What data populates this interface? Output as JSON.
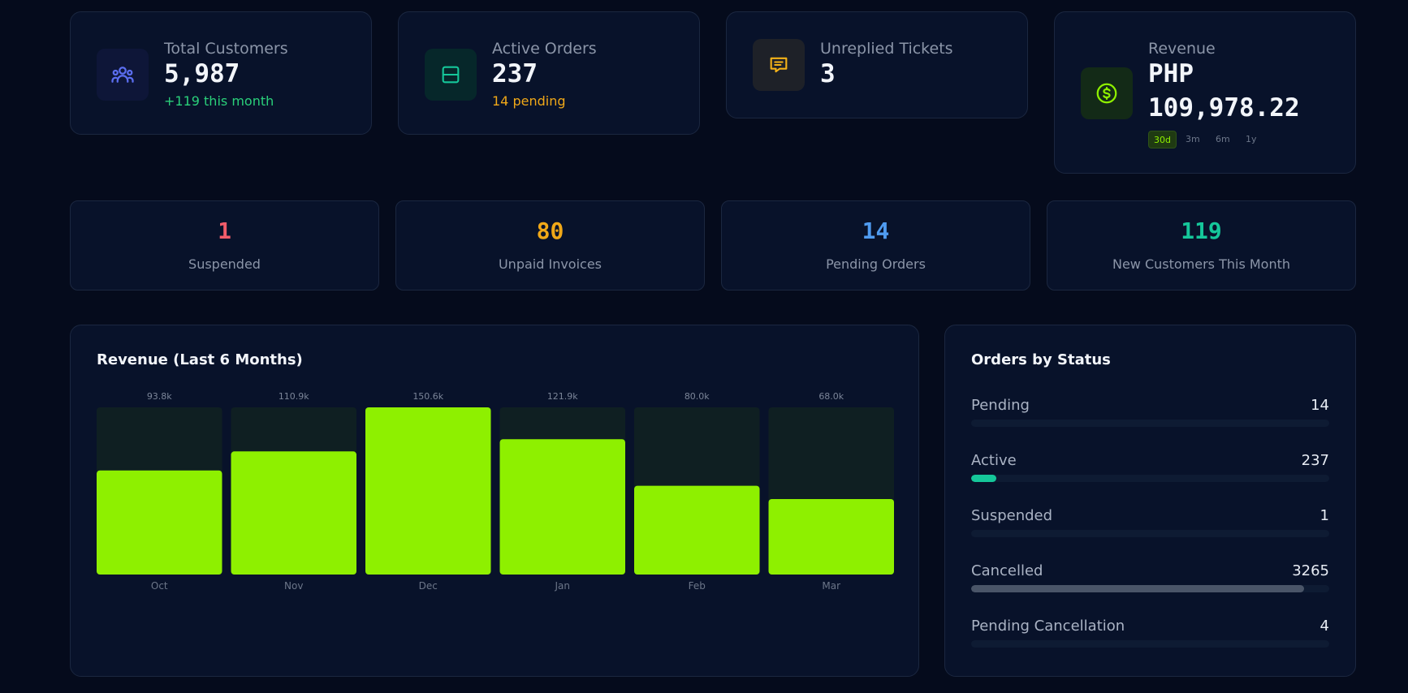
{
  "stats": [
    {
      "label": "Total Customers",
      "value": "5,987",
      "sub": "+119 this month",
      "sub_color": "#2ad07a",
      "icon": "users-icon",
      "accent": "#5b6ef0"
    },
    {
      "label": "Active Orders",
      "value": "237",
      "sub": "14 pending",
      "sub_color": "#f0a818",
      "icon": "layout-icon",
      "accent": "#15c79a"
    },
    {
      "label": "Unreplied Tickets",
      "value": "3",
      "sub": "",
      "icon": "message-icon",
      "accent": "#f5b318"
    },
    {
      "label": "Revenue",
      "value_line1": "PHP",
      "value_line2": "109,978.22",
      "icon": "dollar-icon",
      "accent": "#8ef000",
      "ranges": [
        "30d",
        "3m",
        "6m",
        "1y"
      ],
      "selected_range": "30d"
    }
  ],
  "mini_stats": [
    {
      "value": "1",
      "label": "Suspended",
      "color": "#f25c6a"
    },
    {
      "value": "80",
      "label": "Unpaid Invoices",
      "color": "#f0a818"
    },
    {
      "value": "14",
      "label": "Pending Orders",
      "color": "#4f9bf0"
    },
    {
      "value": "119",
      "label": "New Customers This Month",
      "color": "#15c79a"
    }
  ],
  "revenue_panel": {
    "title": "Revenue (Last 6 Months)"
  },
  "chart_data": {
    "type": "bar",
    "title": "Revenue (Last 6 Months)",
    "categories": [
      "Oct",
      "Nov",
      "Dec",
      "Jan",
      "Feb",
      "Mar"
    ],
    "values": [
      93.8,
      110.9,
      150.6,
      121.9,
      80.0,
      68.0
    ],
    "value_labels": [
      "93.8k",
      "110.9k",
      "150.6k",
      "121.9k",
      "80.0k",
      "68.0k"
    ],
    "ylim": [
      0,
      150.6
    ],
    "bar_color": "#8ef000",
    "track_color": "#0f1f22",
    "grid": false,
    "legend": "none"
  },
  "orders_panel": {
    "title": "Orders by Status",
    "items": [
      {
        "name": "Pending",
        "count": "14",
        "fraction": 0.0,
        "color": "#15c79a"
      },
      {
        "name": "Active",
        "count": "237",
        "fraction": 0.07,
        "color": "#15c79a"
      },
      {
        "name": "Suspended",
        "count": "1",
        "fraction": 0.0,
        "color": "#15c79a"
      },
      {
        "name": "Cancelled",
        "count": "3265",
        "fraction": 0.93,
        "color": "#4a5568"
      },
      {
        "name": "Pending Cancellation",
        "count": "4",
        "fraction": 0.0,
        "color": "#15c79a"
      }
    ]
  }
}
